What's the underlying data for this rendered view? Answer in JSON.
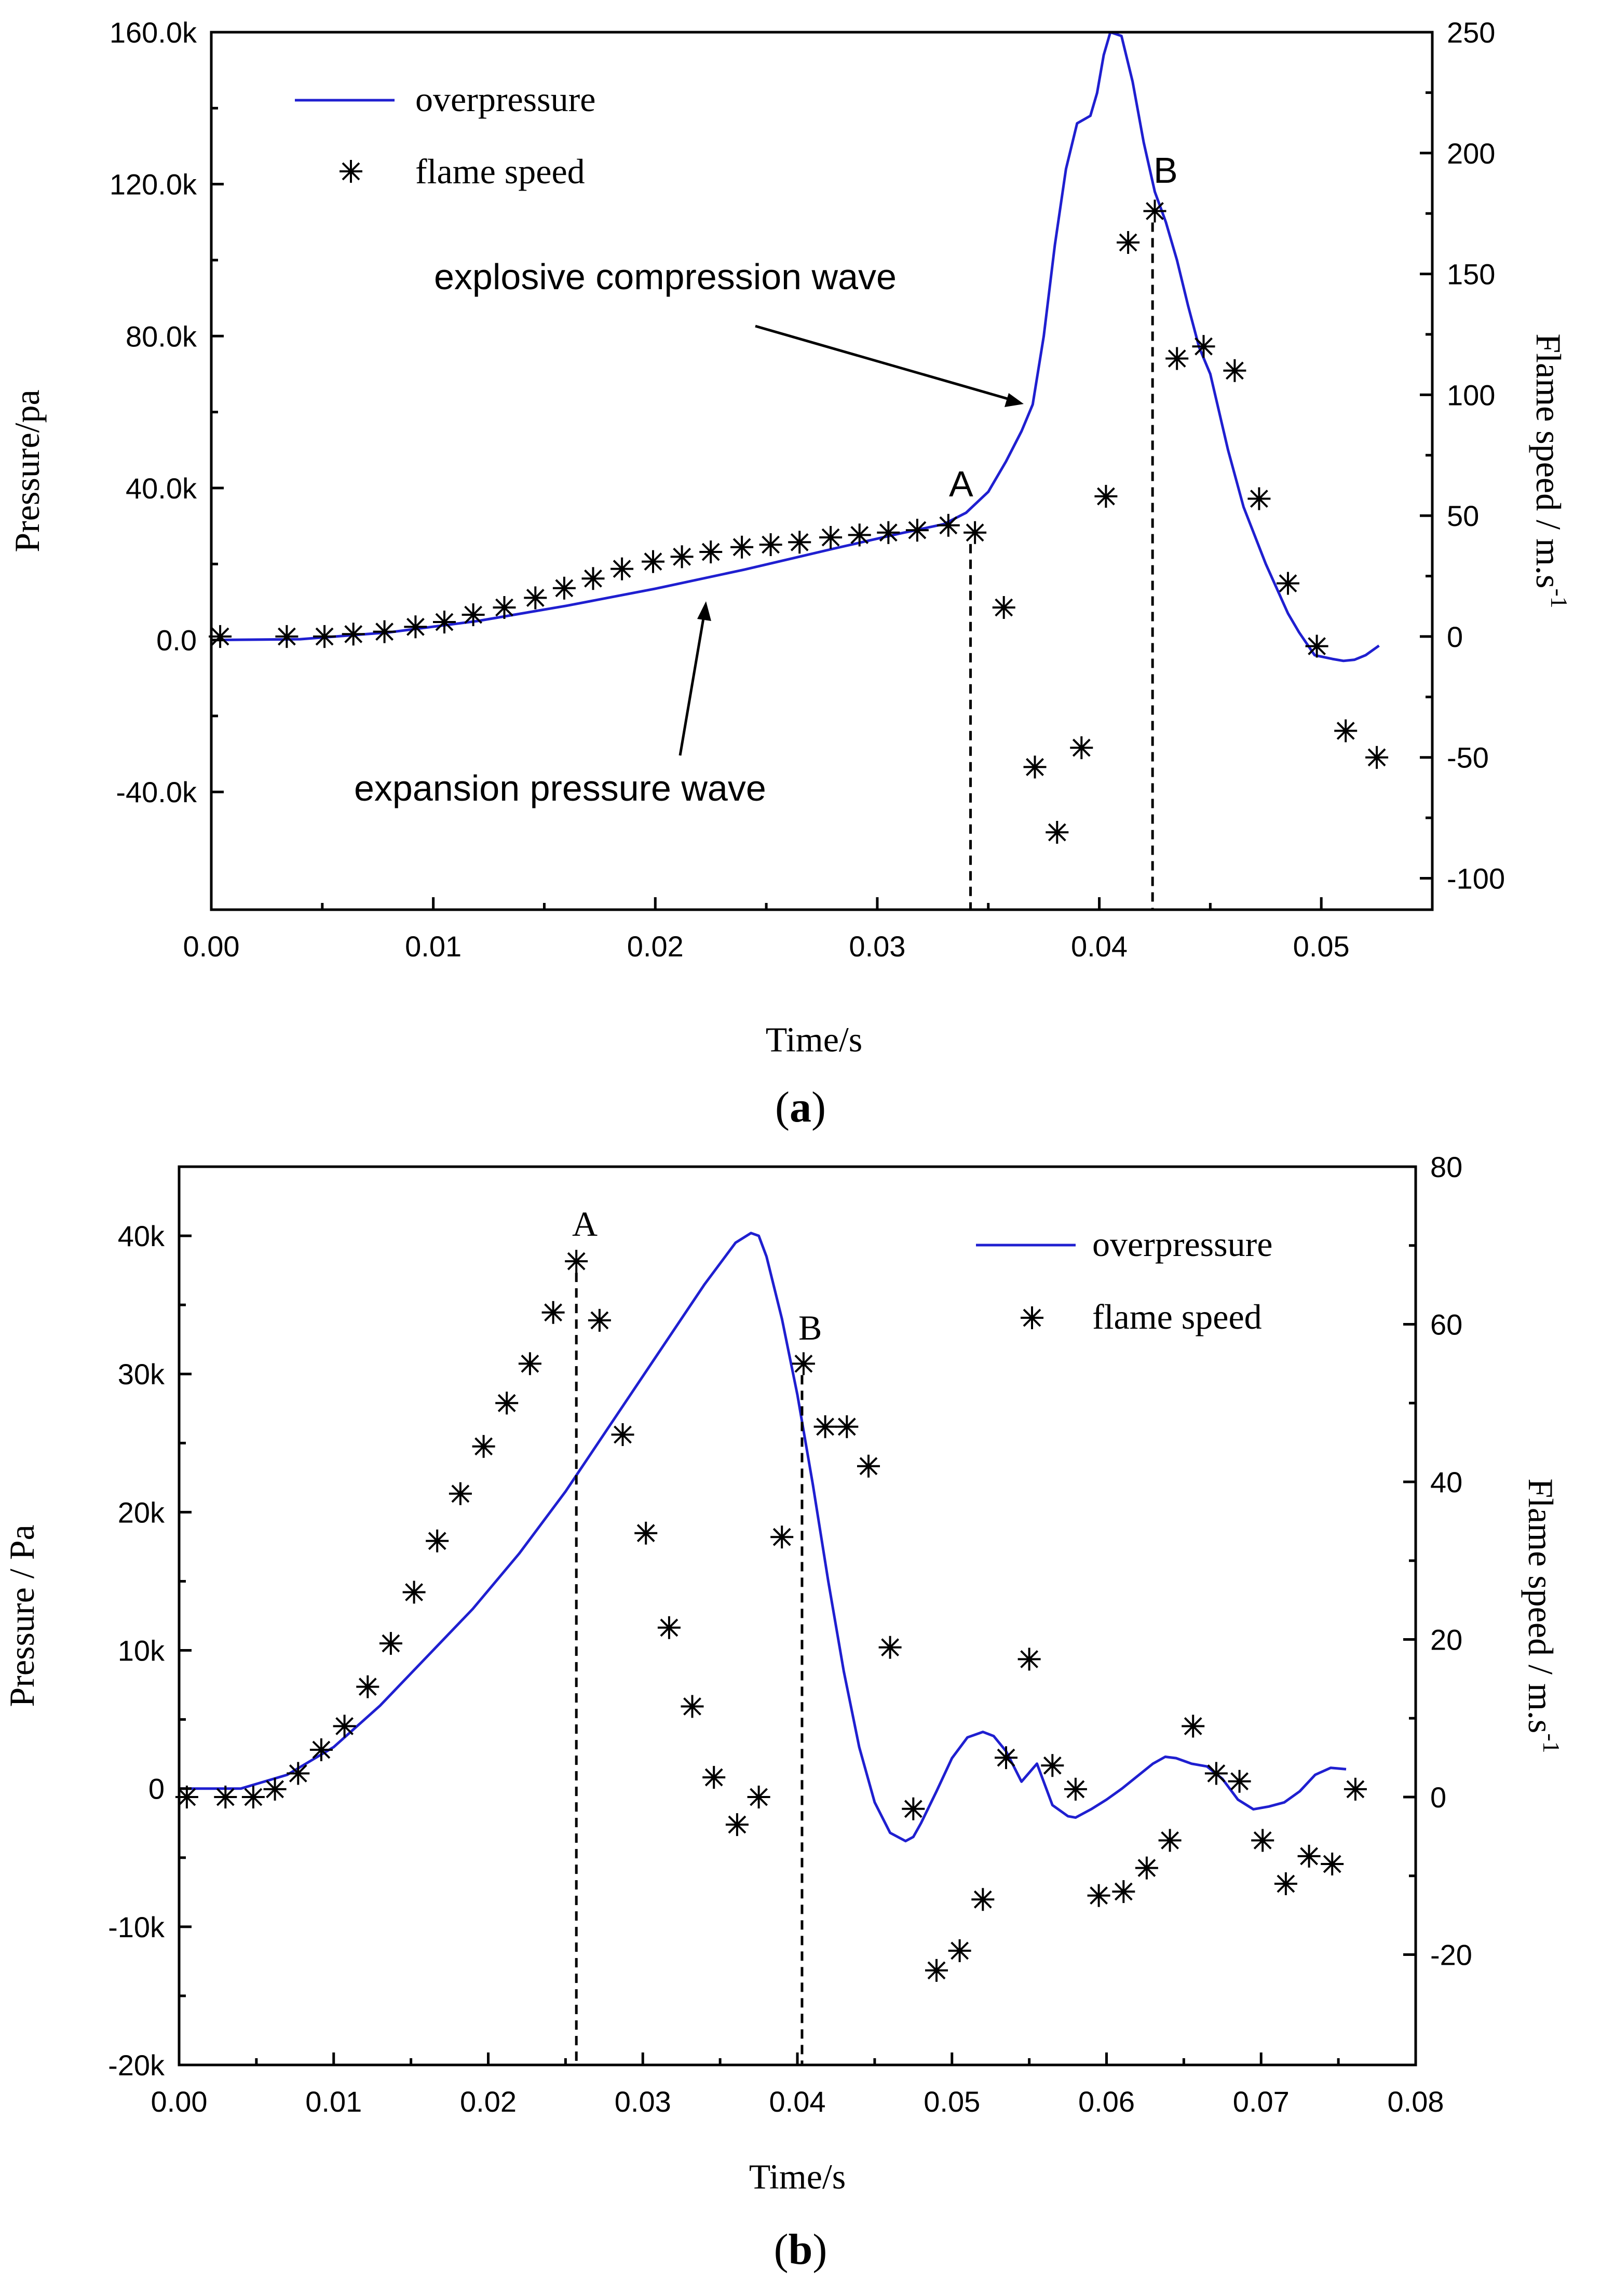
{
  "chart_data": [
    {
      "id": "a",
      "type": "line",
      "caption": {
        "open": "(",
        "letter": "a",
        "close": ")"
      },
      "xlabel": "Time/s",
      "ylabel": "Pressure/pa",
      "y2label": "Flame speed / m.s",
      "y2label_sup": "-1",
      "xlim": [
        0.0,
        0.055
      ],
      "ylim": [
        -71000,
        160000
      ],
      "y2lim": [
        -113,
        250
      ],
      "x_ticks": [
        0.0,
        0.01,
        0.02,
        0.03,
        0.04,
        0.05
      ],
      "x_tick_labels": [
        "0.00",
        "0.01",
        "0.02",
        "0.03",
        "0.04",
        "0.05"
      ],
      "y_ticks": [
        -40000,
        0,
        40000,
        80000,
        120000,
        160000
      ],
      "y_tick_labels": [
        "-40.0k",
        "0.0",
        "40.0k",
        "80.0k",
        "120.0k",
        "160.0k"
      ],
      "y2_ticks": [
        -100,
        -50,
        0,
        50,
        100,
        150,
        200,
        250
      ],
      "y2_tick_labels": [
        "-100",
        "-50",
        "0",
        "50",
        "100",
        "150",
        "200",
        "250"
      ],
      "legend": {
        "position": "top-left",
        "entries": [
          "overpressure",
          "flame speed"
        ]
      },
      "series": [
        {
          "name": "overpressure",
          "axis": "left",
          "color": "#1f1fd0",
          "x": [
            0.0,
            0.004,
            0.008,
            0.012,
            0.016,
            0.02,
            0.024,
            0.028,
            0.031,
            0.033,
            0.034,
            0.035,
            0.0358,
            0.0365,
            0.037,
            0.0375,
            0.038,
            0.0385,
            0.039,
            0.0393,
            0.0396,
            0.0399,
            0.0402,
            0.0405,
            0.041,
            0.0415,
            0.042,
            0.0425,
            0.043,
            0.0435,
            0.044,
            0.0445,
            0.045,
            0.0458,
            0.0465,
            0.0475,
            0.0485,
            0.049,
            0.0497,
            0.0505,
            0.051,
            0.0515,
            0.052,
            0.0526
          ],
          "values": [
            0,
            200,
            2000,
            5000,
            9000,
            13500,
            18500,
            24000,
            28000,
            30500,
            33500,
            39000,
            47000,
            55000,
            62000,
            80000,
            104000,
            124000,
            136000,
            137000,
            138000,
            144000,
            154000,
            162000,
            159000,
            147000,
            131000,
            118000,
            110000,
            100000,
            88000,
            77000,
            70000,
            50000,
            35000,
            20000,
            7000,
            2000,
            -4000,
            -5000,
            -5500,
            -5200,
            -4000,
            -1500
          ]
        },
        {
          "name": "flame speed",
          "axis": "right",
          "marker": "asterisk",
          "x": [
            0.0004,
            0.0034,
            0.0051,
            0.0064,
            0.0078,
            0.0092,
            0.0105,
            0.0118,
            0.0132,
            0.0146,
            0.0159,
            0.0172,
            0.0185,
            0.0199,
            0.0212,
            0.0225,
            0.0239,
            0.0252,
            0.0265,
            0.0279,
            0.0292,
            0.0305,
            0.0318,
            0.0332,
            0.0344,
            0.0357,
            0.0371,
            0.0381,
            0.0392,
            0.0403,
            0.0413,
            0.0425,
            0.0435,
            0.0447,
            0.0461,
            0.0472,
            0.0485,
            0.0498,
            0.0511,
            0.0525
          ],
          "values": [
            0,
            0,
            0,
            1,
            2,
            4,
            6,
            9,
            12,
            16,
            20,
            24,
            28,
            31,
            33,
            35,
            37,
            38,
            39,
            41,
            42,
            43,
            44,
            46,
            43,
            12,
            -54,
            -81,
            -46,
            58,
            163,
            176,
            115,
            120,
            110,
            57,
            22,
            -4,
            -39,
            -50
          ]
        }
      ],
      "annotations": {
        "label_a": "A",
        "label_b": "B",
        "explosive": "explosive compression wave",
        "expansion": "expansion pressure wave"
      },
      "vlines": [
        0.0342,
        0.0424
      ]
    },
    {
      "id": "b",
      "type": "line",
      "caption": {
        "open": "(",
        "letter": "b",
        "close": ")"
      },
      "xlabel": "Time/s",
      "ylabel": "Pressure / Pa",
      "y2label": "Flame speed / m.s",
      "y2label_sup": "-1",
      "xlim": [
        0.0,
        0.08
      ],
      "ylim": [
        -20000,
        45000
      ],
      "y2lim": [
        -34,
        80
      ],
      "x_ticks": [
        0.0,
        0.01,
        0.02,
        0.03,
        0.04,
        0.05,
        0.06,
        0.07,
        0.08
      ],
      "x_tick_labels": [
        "0.00",
        "0.01",
        "0.02",
        "0.03",
        "0.04",
        "0.05",
        "0.06",
        "0.07",
        "0.08"
      ],
      "y_ticks": [
        -20000,
        -10000,
        0,
        10000,
        20000,
        30000,
        40000
      ],
      "y_tick_labels": [
        "-20k",
        "-10k",
        "0",
        "10k",
        "20k",
        "30k",
        "40k"
      ],
      "y2_ticks": [
        -20,
        0,
        20,
        40,
        60,
        80
      ],
      "y2_tick_labels": [
        "-20",
        "0",
        "20",
        "40",
        "60",
        "80"
      ],
      "legend": {
        "position": "top-right",
        "entries": [
          "overpressure",
          "flame speed"
        ]
      },
      "series": [
        {
          "name": "overpressure",
          "axis": "left",
          "color": "#1f1fd0",
          "x": [
            0.0,
            0.004,
            0.007,
            0.01,
            0.013,
            0.016,
            0.019,
            0.022,
            0.025,
            0.028,
            0.031,
            0.034,
            0.036,
            0.037,
            0.0375,
            0.038,
            0.039,
            0.04,
            0.041,
            0.042,
            0.043,
            0.044,
            0.045,
            0.046,
            0.047,
            0.0475,
            0.048,
            0.049,
            0.05,
            0.051,
            0.052,
            0.0527,
            0.0535,
            0.0545,
            0.0555,
            0.0565,
            0.0575,
            0.058,
            0.059,
            0.06,
            0.061,
            0.062,
            0.063,
            0.0638,
            0.0645,
            0.0655,
            0.0665,
            0.0675,
            0.0685,
            0.0695,
            0.0705,
            0.0715,
            0.0725,
            0.0735,
            0.0745,
            0.0755
          ],
          "values": [
            0,
            0,
            1000,
            3000,
            6000,
            9500,
            13000,
            17000,
            21500,
            26500,
            31500,
            36500,
            39500,
            40200,
            40000,
            38500,
            34000,
            28500,
            22000,
            15000,
            8500,
            3000,
            -1000,
            -3200,
            -3800,
            -3500,
            -2500,
            -200,
            2200,
            3700,
            4100,
            3800,
            2700,
            500,
            1800,
            -1200,
            -2000,
            -2100,
            -1500,
            -800,
            0,
            900,
            1800,
            2300,
            2200,
            1800,
            1600,
            700,
            -800,
            -1500,
            -1300,
            -1000,
            -200,
            1000,
            1500,
            1400
          ]
        },
        {
          "name": "flame speed",
          "axis": "right",
          "marker": "asterisk",
          "x": [
            0.0005,
            0.003,
            0.0048,
            0.0062,
            0.0077,
            0.0092,
            0.0107,
            0.0122,
            0.0137,
            0.0152,
            0.0167,
            0.0182,
            0.0197,
            0.0212,
            0.0227,
            0.0242,
            0.0257,
            0.0272,
            0.0287,
            0.0302,
            0.0317,
            0.0332,
            0.0346,
            0.0361,
            0.0375,
            0.039,
            0.0404,
            0.0418,
            0.0432,
            0.0446,
            0.046,
            0.0475,
            0.049,
            0.0505,
            0.052,
            0.0535,
            0.055,
            0.0565,
            0.058,
            0.0595,
            0.0611,
            0.0626,
            0.0641,
            0.0656,
            0.0671,
            0.0686,
            0.0701,
            0.0716,
            0.0731,
            0.0746,
            0.0761
          ],
          "values": [
            0,
            0,
            0,
            1,
            3,
            6,
            9,
            14,
            19.5,
            26,
            32.5,
            38.5,
            44.5,
            50,
            55,
            61.5,
            68,
            60.5,
            46,
            33.5,
            21.5,
            11.5,
            2.5,
            -3.5,
            0,
            33,
            55,
            47,
            47,
            42,
            19,
            -1.5,
            -22,
            -19.5,
            -13,
            5,
            17.5,
            4,
            1,
            -12.5,
            -12,
            -9,
            -5.5,
            9,
            3,
            2,
            -5.5,
            -11,
            -7.5,
            -8.5,
            1
          ]
        }
      ],
      "annotations": {
        "label_a": "A",
        "label_b": "B"
      },
      "vlines": [
        0.0257,
        0.0403
      ]
    }
  ]
}
